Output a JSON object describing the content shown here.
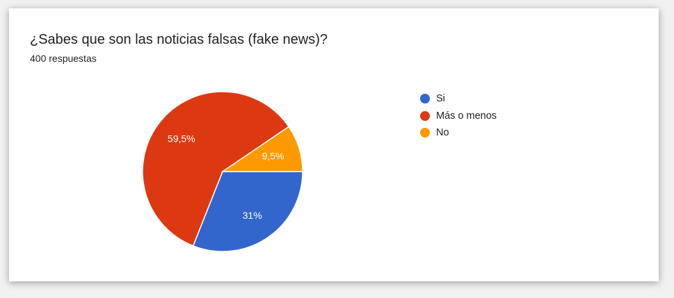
{
  "card": {
    "title": "¿Sabes que son las noticias falsas (fake news)?",
    "subtitle": "400 respuestas"
  },
  "chart_data": {
    "type": "pie",
    "categories": [
      "Si",
      "Más o menos",
      "No"
    ],
    "values": [
      31,
      59.5,
      9.5
    ],
    "labels": [
      "31%",
      "59,5%",
      "9,5%"
    ],
    "colors": [
      "#3366cc",
      "#dc3912",
      "#ff9900"
    ],
    "legend_position": "right"
  }
}
